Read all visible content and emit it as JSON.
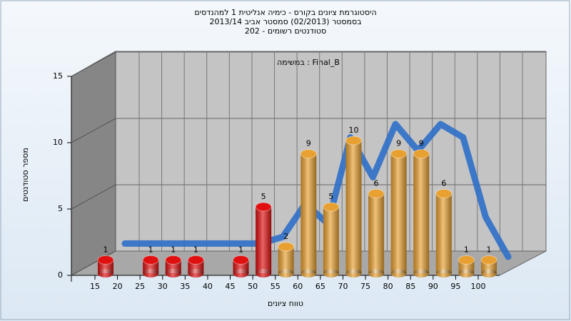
{
  "chart_data": {
    "type": "bar",
    "title_lines": [
      "היסטוגרמת ציונים בקורס - כימיה אנליטית 1 למהנדסים",
      "בסמסטר  (02/2013)  סמסטר אביב 2013/14",
      "סטודנטים רשומים - 202"
    ],
    "annotation": "במשימה : Final_B",
    "ylabel": "מספר סטודנטים",
    "xlabel": "טווח ציונים",
    "categories": [
      "15",
      "20",
      "25",
      "30",
      "35",
      "40",
      "45",
      "50",
      "55",
      "60",
      "65",
      "70",
      "75",
      "80",
      "85",
      "90",
      "95",
      "100"
    ],
    "values": [
      1,
      null,
      1,
      1,
      1,
      null,
      1,
      5,
      2,
      9,
      5,
      10,
      6,
      9,
      9,
      6,
      1,
      1
    ],
    "colors": [
      "#e01010",
      "#e01010",
      "#e01010",
      "#e01010",
      "#e01010",
      "#e01010",
      "#e01010",
      "#e01010",
      "#e8a030",
      "#e8a030",
      "#e8a030",
      "#e8a030",
      "#e8a030",
      "#e8a030",
      "#e8a030",
      "#e8a030",
      "#e8a030",
      "#e8a030"
    ],
    "trend_values": [
      1,
      1,
      1,
      1,
      1,
      1,
      1,
      1.5,
      4,
      2.5,
      9,
      6,
      10,
      8,
      10,
      9,
      3,
      0
    ],
    "trend_color": "#2f6fc8",
    "ylim": [
      0,
      15
    ],
    "yticks": [
      0,
      5,
      10,
      15
    ],
    "grid": true
  }
}
